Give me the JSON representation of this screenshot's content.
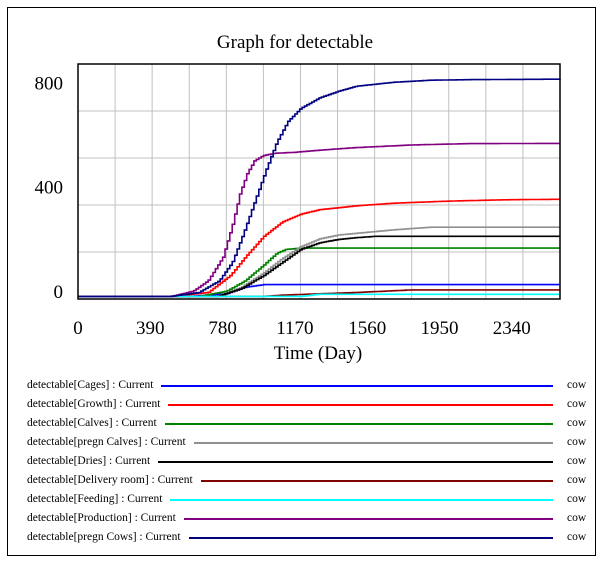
{
  "chart_data": {
    "type": "line",
    "title": "Graph for detectable",
    "xlabel": "Time (Day)",
    "ylabel": "",
    "xlim": [
      0,
      2600
    ],
    "ylim": [
      -30,
      870
    ],
    "x_ticks": [
      0,
      390,
      780,
      1170,
      1560,
      1950,
      2340
    ],
    "x_tick_labels": [
      "0",
      "390",
      "780",
      "1170",
      "1560",
      "1950",
      "2340"
    ],
    "y_ticks": [
      0,
      400,
      800
    ],
    "y_tick_labels": [
      "0",
      "400",
      "800"
    ],
    "grid": true,
    "legend_position": "bottom",
    "series": [
      {
        "name": "detectable[Cages] : Current",
        "unit": "cow",
        "color": "#0000ff",
        "points": [
          [
            0,
            -20
          ],
          [
            600,
            -20
          ],
          [
            800,
            -10
          ],
          [
            900,
            15
          ],
          [
            1000,
            25
          ],
          [
            2600,
            25
          ]
        ]
      },
      {
        "name": "detectable[Growth] : Current",
        "unit": "cow",
        "color": "#ff0000",
        "points": [
          [
            0,
            -20
          ],
          [
            500,
            -20
          ],
          [
            700,
            -5
          ],
          [
            820,
            60
          ],
          [
            900,
            130
          ],
          [
            1000,
            210
          ],
          [
            1100,
            265
          ],
          [
            1200,
            295
          ],
          [
            1300,
            312
          ],
          [
            1500,
            327
          ],
          [
            1700,
            337
          ],
          [
            2000,
            345
          ],
          [
            2300,
            350
          ],
          [
            2600,
            352
          ]
        ]
      },
      {
        "name": "detectable[Calves] : Current",
        "unit": "cow",
        "color": "#008000",
        "points": [
          [
            0,
            -20
          ],
          [
            650,
            -20
          ],
          [
            800,
            0
          ],
          [
            900,
            40
          ],
          [
            1000,
            100
          ],
          [
            1070,
            145
          ],
          [
            1120,
            160
          ],
          [
            1200,
            165
          ],
          [
            2600,
            165
          ]
        ]
      },
      {
        "name": "detectable[pregn Calves] : Current",
        "unit": "cow",
        "color": "#909090",
        "points": [
          [
            0,
            -20
          ],
          [
            750,
            -20
          ],
          [
            880,
            15
          ],
          [
            1000,
            70
          ],
          [
            1100,
            125
          ],
          [
            1200,
            170
          ],
          [
            1300,
            200
          ],
          [
            1400,
            215
          ],
          [
            1550,
            225
          ],
          [
            1700,
            235
          ],
          [
            1900,
            245
          ],
          [
            2600,
            245
          ]
        ]
      },
      {
        "name": "detectable[Dries] : Current",
        "unit": "cow",
        "color": "#000000",
        "points": [
          [
            0,
            -20
          ],
          [
            750,
            -20
          ],
          [
            880,
            10
          ],
          [
            1000,
            60
          ],
          [
            1100,
            110
          ],
          [
            1200,
            160
          ],
          [
            1300,
            185
          ],
          [
            1400,
            198
          ],
          [
            1500,
            205
          ],
          [
            1600,
            210
          ],
          [
            2600,
            210
          ]
        ]
      },
      {
        "name": "detectable[Delivery room] : Current",
        "unit": "cow",
        "color": "#800000",
        "points": [
          [
            0,
            -20
          ],
          [
            1000,
            -20
          ],
          [
            1100,
            -15
          ],
          [
            1500,
            -5
          ],
          [
            1800,
            5
          ],
          [
            2600,
            5
          ]
        ]
      },
      {
        "name": "detectable[Feeding] : Current",
        "unit": "cow",
        "color": "#00ffff",
        "points": [
          [
            0,
            -20
          ],
          [
            1200,
            -20
          ],
          [
            1300,
            -12
          ],
          [
            2600,
            -12
          ]
        ]
      },
      {
        "name": "detectable[Production] : Current",
        "unit": "cow",
        "color": "#800080",
        "points": [
          [
            0,
            -20
          ],
          [
            500,
            -20
          ],
          [
            620,
            0
          ],
          [
            700,
            40
          ],
          [
            780,
            130
          ],
          [
            830,
            250
          ],
          [
            870,
            370
          ],
          [
            910,
            450
          ],
          [
            950,
            500
          ],
          [
            1000,
            520
          ],
          [
            1060,
            528
          ],
          [
            1170,
            532
          ],
          [
            1300,
            540
          ],
          [
            1500,
            550
          ],
          [
            1800,
            560
          ],
          [
            2100,
            565
          ],
          [
            2600,
            566
          ]
        ]
      },
      {
        "name": "detectable[pregn Cows] : Current",
        "unit": "cow",
        "color": "#000080",
        "points": [
          [
            0,
            -20
          ],
          [
            500,
            -20
          ],
          [
            650,
            -5
          ],
          [
            760,
            40
          ],
          [
            830,
            110
          ],
          [
            890,
            220
          ],
          [
            950,
            340
          ],
          [
            1010,
            460
          ],
          [
            1070,
            570
          ],
          [
            1130,
            650
          ],
          [
            1200,
            700
          ],
          [
            1300,
            740
          ],
          [
            1400,
            765
          ],
          [
            1500,
            785
          ],
          [
            1700,
            800
          ],
          [
            1900,
            808
          ],
          [
            2100,
            810
          ],
          [
            2600,
            812
          ]
        ]
      }
    ]
  }
}
